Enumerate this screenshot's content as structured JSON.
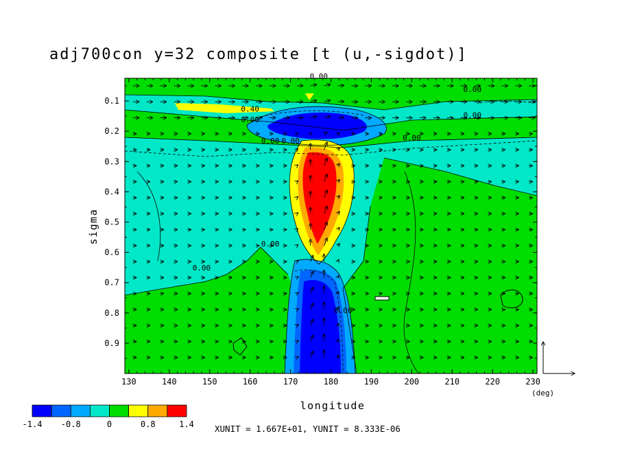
{
  "chart_data": {
    "type": "heatmap",
    "title": "adj700con y=32 composite [t (u,-sigdot)]",
    "xlabel": "longitude",
    "ylabel": "sigma",
    "xlim": [
      129,
      231
    ],
    "ylim": [
      1.0,
      0.025
    ],
    "x_ticks": [
      "130",
      "140",
      "150",
      "160",
      "170",
      "180",
      "190",
      "200",
      "210",
      "220",
      "230"
    ],
    "y_ticks": [
      "0.1",
      "0.2",
      "0.3",
      "0.4",
      "0.5",
      "0.6",
      "0.7",
      "0.8",
      "0.9"
    ],
    "x_unit_label": "(deg)",
    "unit_note": "XUNIT = 1.667E+01, YUNIT = 8.333E-06",
    "colorbar": {
      "colors": [
        "#0000ff",
        "#0066ff",
        "#00aaff",
        "#00e8c8",
        "#00dd00",
        "#ffff00",
        "#ffaa00",
        "#ff0000"
      ],
      "tick_labels": [
        "-1.4",
        "-0.8",
        "0",
        "0.8",
        "1.4"
      ]
    },
    "contour_labels": [
      {
        "text": "0.00",
        "x": 177,
        "y": 0.027
      },
      {
        "text": "0.00",
        "x": 215,
        "y": 0.07
      },
      {
        "text": "0.40",
        "x": 160,
        "y": 0.135
      },
      {
        "text": "0.00",
        "x": 160,
        "y": 0.17
      },
      {
        "text": "0.00",
        "x": 215,
        "y": 0.155
      },
      {
        "text": "0.00",
        "x": 165,
        "y": 0.24
      },
      {
        "text": "0.00",
        "x": 200,
        "y": 0.23
      },
      {
        "text": "0.00",
        "x": 170,
        "y": 0.24
      },
      {
        "text": "0.00",
        "x": 165,
        "y": 0.58
      },
      {
        "text": "0.00",
        "x": 148,
        "y": 0.66
      },
      {
        "text": "0.00",
        "x": 183,
        "y": 0.8
      }
    ],
    "regions": [
      {
        "name": "positive-core",
        "value": 1.4,
        "x": [
          172,
          184
        ],
        "y": [
          0.27,
          0.57
        ]
      },
      {
        "name": "negative-upper",
        "value": -1.4,
        "x": [
          170,
          190
        ],
        "y": [
          0.15,
          0.21
        ]
      },
      {
        "name": "negative-lower",
        "value": -1.4,
        "x": [
          172,
          183
        ],
        "y": [
          0.66,
          1.0
        ]
      },
      {
        "name": "positive-upper-strip",
        "value": 0.8,
        "x": [
          140,
          167
        ],
        "y": [
          0.11,
          0.14
        ]
      }
    ]
  }
}
